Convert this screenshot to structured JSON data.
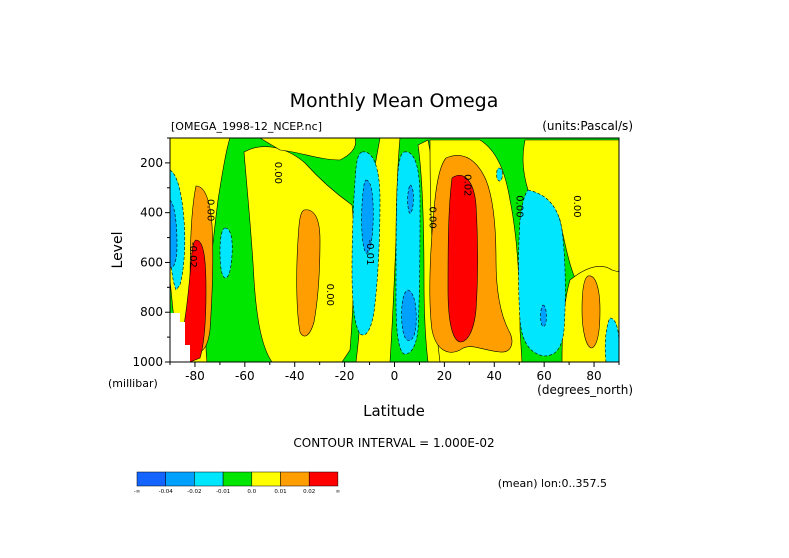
{
  "chart_data": {
    "type": "contour",
    "title": "Monthly Mean Omega",
    "file_label": "[OMEGA_1998-12_NCEP.nc]",
    "units_label": "(units:Pascal/s)",
    "xlabel": "Latitude",
    "x_units": "(degrees_north)",
    "ylabel": "Level",
    "y_units": "(millibar)",
    "xlim": [
      -90,
      90
    ],
    "ylim": [
      1000,
      100
    ],
    "x_ticks": [
      -80,
      -60,
      -40,
      -20,
      0,
      20,
      40,
      60,
      80
    ],
    "y_ticks": [
      200,
      400,
      600,
      800,
      1000
    ],
    "contour_interval_text": "CONTOUR INTERVAL = 1.000E-02",
    "mean_text": "(mean) lon:0..357.5",
    "contour_labels": [
      {
        "text": "0.00",
        "lat": -75,
        "lev": 390
      },
      {
        "text": "0.00",
        "lat": -48,
        "lev": 240
      },
      {
        "text": "0.00",
        "lat": -27,
        "lev": 730
      },
      {
        "text": "-0.01",
        "lat": -11,
        "lev": 560
      },
      {
        "text": "0.00",
        "lat": 14,
        "lev": 420
      },
      {
        "text": "0.02",
        "lat": 28,
        "lev": 290
      },
      {
        "text": "0.00",
        "lat": 49,
        "lev": 375
      },
      {
        "text": "0.00",
        "lat": 72,
        "lev": 375
      },
      {
        "text": "-0.02",
        "lat": -82,
        "lev": 570
      }
    ],
    "legend": {
      "bins": [
        {
          "color": "#1464ff",
          "label": "-∞"
        },
        {
          "color": "#00a0ff",
          "label": "-0.04"
        },
        {
          "color": "#00e6ff",
          "label": "-0.02"
        },
        {
          "color": "#00e600",
          "label": "-0.01"
        },
        {
          "color": "#ffff00",
          "label": "0.0"
        },
        {
          "color": "#ff9e00",
          "label": "0.01"
        },
        {
          "color": "#ff0000",
          "label": "0.02"
        },
        {
          "color": "",
          "label": "∞"
        }
      ]
    },
    "colors": {
      "green": "#00e600",
      "yellow": "#ffff00",
      "orange": "#ff9e00",
      "red": "#ff0000",
      "cyan": "#00e6ff",
      "skyblue": "#00a0ff",
      "blue": "#1464ff"
    }
  }
}
